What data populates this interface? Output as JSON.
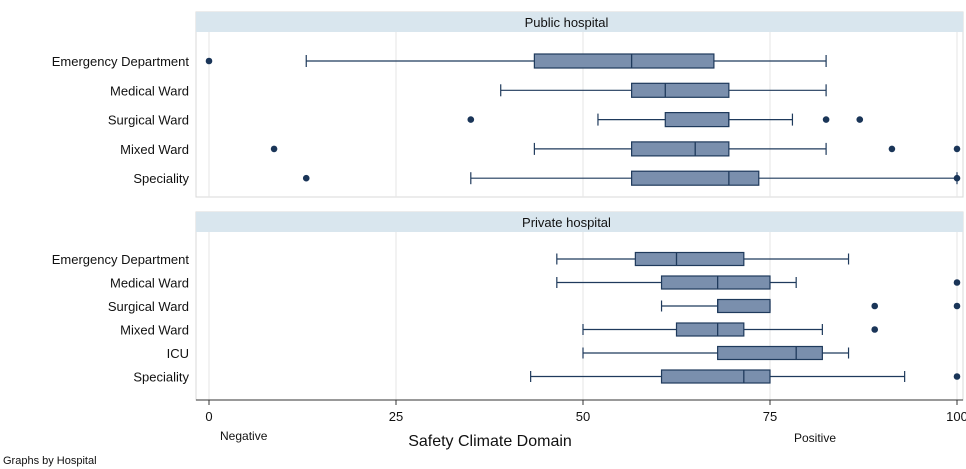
{
  "chart_data": {
    "type": "boxplot",
    "orientation": "horizontal",
    "xlabel": "Safety Climate Domain",
    "xlim": [
      0,
      100
    ],
    "xticks": [
      0,
      25,
      50,
      75,
      100
    ],
    "x_annotations": {
      "left": "Negative",
      "right": "Positive"
    },
    "footnote": "Graphs by Hospital",
    "colors": {
      "box": "#7a8fad",
      "stroke": "#1f3a5c",
      "outlier": "#1a3558",
      "panel_header": "#d9e6ee",
      "grid": "#e6e6e6"
    },
    "panels": [
      {
        "title": "Public hospital",
        "groups": [
          {
            "label": "Emergency Department",
            "min": 13.0,
            "q1": 43.5,
            "median": 56.5,
            "q3": 67.5,
            "max": 82.5,
            "outliers": [
              0
            ]
          },
          {
            "label": "Medical Ward",
            "min": 39.0,
            "q1": 56.5,
            "median": 61.0,
            "q3": 69.5,
            "max": 82.5,
            "outliers": []
          },
          {
            "label": "Surgical Ward",
            "min": 52.0,
            "q1": 61.0,
            "median": 69.5,
            "q3": 69.5,
            "max": 78.0,
            "outliers": [
              35,
              82.5,
              87
            ]
          },
          {
            "label": "Mixed Ward",
            "min": 43.5,
            "q1": 56.5,
            "median": 65.0,
            "q3": 69.5,
            "max": 82.5,
            "outliers": [
              8.7,
              91.3,
              100
            ]
          },
          {
            "label": "Speciality",
            "min": 35.0,
            "q1": 56.5,
            "median": 69.5,
            "q3": 73.5,
            "max": 100,
            "outliers": [
              13,
              100
            ]
          }
        ]
      },
      {
        "title": "Private hospital",
        "groups": [
          {
            "label": "Emergency Department",
            "min": 46.5,
            "q1": 57.0,
            "median": 62.5,
            "q3": 71.5,
            "max": 85.5,
            "outliers": []
          },
          {
            "label": "Medical Ward",
            "min": 46.5,
            "q1": 60.5,
            "median": 68.0,
            "q3": 75.0,
            "max": 78.5,
            "outliers": [
              100
            ]
          },
          {
            "label": "Surgical Ward",
            "min": 60.5,
            "q1": 68.0,
            "median": 68.0,
            "q3": 75.0,
            "max": 75.0,
            "outliers": [
              89,
              100
            ]
          },
          {
            "label": "Mixed Ward",
            "min": 50.0,
            "q1": 62.5,
            "median": 68.0,
            "q3": 71.5,
            "max": 82.0,
            "outliers": [
              89
            ]
          },
          {
            "label": "ICU",
            "min": 50.0,
            "q1": 68.0,
            "median": 78.5,
            "q3": 82.0,
            "max": 85.5,
            "outliers": []
          },
          {
            "label": "Speciality",
            "min": 43.0,
            "q1": 60.5,
            "median": 71.5,
            "q3": 75.0,
            "max": 93.0,
            "outliers": [
              100
            ]
          }
        ]
      }
    ]
  }
}
